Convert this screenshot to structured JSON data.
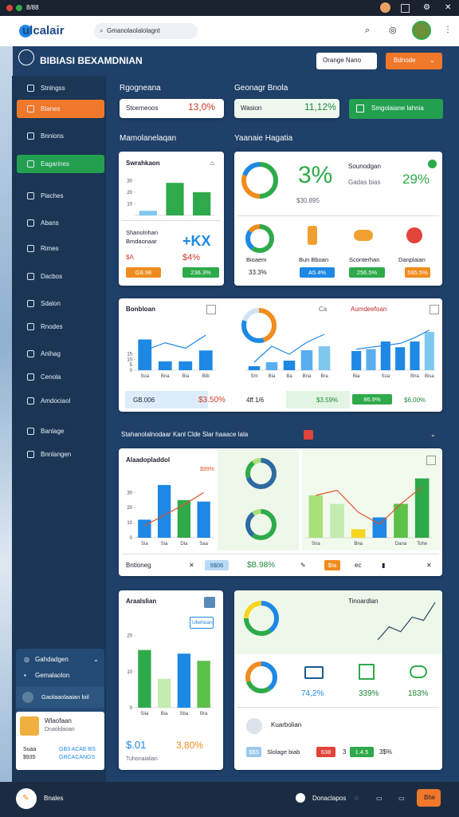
{
  "window": {
    "title": "8/88"
  },
  "header": {
    "logo": "ulcalair",
    "search": "Gmanolaolalolagnt"
  },
  "toolbar": {
    "title": "BIBIASI BEXAMDNIAN",
    "buttons": [
      "Orange Nano",
      "Bdnode"
    ]
  },
  "sidebar": {
    "items": [
      "Stnlngss",
      "Blanes",
      "Bnnions",
      "Eagarines",
      "Piaches",
      "Abans",
      "Rimes",
      "Dacbos",
      "Sdalon",
      "Rnodes",
      "Anihag",
      "Cenola",
      "Amdociaol",
      "Banlage",
      "Bnnlangen"
    ],
    "panel": {
      "title": "Gahdadgen",
      "subtitle": "Gemalaolon",
      "note": "Gaolaaolaaian loil",
      "user": "Wlaofaan",
      "role": "Dnaoldaoan",
      "stats": [
        "Suaa",
        "GB3 ACAE BS",
        "$935",
        "GRCACANGS"
      ]
    }
  },
  "kpis": {
    "labels": [
      "Rgogneana",
      "Geonagr Bnola"
    ],
    "names": [
      "Stcerneoos",
      "Wasion"
    ],
    "values": [
      "13,0%",
      "11,12%"
    ],
    "button": "Smgolaiane lahnia"
  },
  "sections": [
    "Mamolanelaqan",
    "Yaanaie Hagatia",
    "Stahanolalnodaar Kanl Clde Slar haaace lala"
  ],
  "card_a": {
    "title": "Swrahkaon",
    "name": "Shanolnhan",
    "sub": "Bmdaonaar",
    "v1": "$A",
    "v2": "$4%",
    "big": "+KX",
    "tags": [
      "G8.98",
      "236.3%"
    ]
  },
  "card_b": {
    "big": "3%",
    "amount": "$30.895",
    "name": "Sounodgan",
    "sub": "Gadas bias",
    "pct": "29%",
    "labels": [
      "Bioaem",
      "Bun Bboan",
      "Sconterhan",
      "Danplaian"
    ],
    "tags": [
      "33.3%",
      "A5.4%",
      "256.5%",
      "595.5%"
    ]
  },
  "card_c": {
    "title": "Bonbloan",
    "mid": "Ca",
    "right": "Aumdeefoan",
    "strip": [
      "GB.006",
      "$3.50%",
      "4ff.1/6",
      "$3.59%",
      "86.9%",
      "$6.00%"
    ]
  },
  "card_d": {
    "title": "Alaadopladdol",
    "note": "$99%",
    "footer": [
      "Bntioneg",
      "9$06",
      "$B.98%",
      "$Ia",
      "ec"
    ]
  },
  "card_e": {
    "title": "Araalslian",
    "button": "Ullehoan",
    "big": "$.01",
    "pct": "3,80%",
    "foot": "Tuhonaialian"
  },
  "card_f": {
    "title": "Tinoardlan",
    "values": [
      "74,2%",
      "339%",
      "183%"
    ],
    "name": "Kuarbolian",
    "tags": [
      "$$5",
      "Slolage biab",
      "638",
      "3",
      "1.4.5",
      "3$%"
    ]
  },
  "footer": {
    "left": "Bnales",
    "right": "Donaclapos",
    "button": "Bhe"
  },
  "charts": [
    {
      "type": "bar",
      "values": [
        4,
        28,
        20
      ],
      "colors": [
        "#7ec8f0",
        "#2eaa4a",
        "#2eaa4a"
      ],
      "ylim": [
        0,
        35
      ],
      "yticks": [
        10,
        20,
        30
      ]
    },
    {
      "type": "donut",
      "values": [
        50,
        30,
        20
      ],
      "colors": [
        "#2eaa4a",
        "#f08c1e",
        "#1e88e5"
      ]
    },
    {
      "type": "donut",
      "values": [
        60,
        25,
        15
      ],
      "colors": [
        "#2eaa4a",
        "#1e88e5",
        "#f08c1e"
      ]
    },
    {
      "type": "bar",
      "values": [
        28,
        8,
        8,
        18
      ],
      "colors": [
        "#1e88e5",
        "#1e88e5",
        "#1e88e5",
        "#1e88e5"
      ],
      "ylim": [
        0,
        40
      ],
      "yticks": [
        0,
        5,
        10,
        15
      ],
      "categories": [
        "Sua",
        "Bna",
        "Bia",
        "Btb"
      ],
      "line": [
        18,
        25,
        20,
        32
      ],
      "line_color": "#1e88e5"
    },
    {
      "type": "donut",
      "values": [
        45,
        35,
        20
      ],
      "colors": [
        "#f08c1e",
        "#1e88e5",
        "#cfe3f5"
      ]
    },
    {
      "type": "bar",
      "values": [
        5,
        10,
        12,
        25,
        30
      ],
      "colors": [
        "#1e88e5",
        "#5aaef0",
        "#1e88e5",
        "#5aaef0",
        "#7ec8f0"
      ],
      "ylim": [
        0,
        50
      ],
      "categories": [
        "Sm",
        "Bia",
        "Ba",
        "Bna",
        "Bra"
      ],
      "line": [
        10,
        30,
        20,
        35,
        45
      ],
      "line_color": "#1e88e5"
    },
    {
      "type": "bar",
      "values": [
        20,
        22,
        30,
        24,
        30,
        40
      ],
      "colors": [
        "#1e88e5",
        "#5aaef0",
        "#1e88e5",
        "#1e88e5",
        "#1e88e5",
        "#7ec8f0"
      ],
      "ylim": [
        0,
        50
      ],
      "categories": [
        "Bia",
        null,
        "Sua",
        null,
        "Bna",
        "Bisa"
      ],
      "line": [
        22,
        24,
        26,
        28,
        34,
        42
      ],
      "line_color": "#1e88e5"
    },
    {
      "type": "bar",
      "values": [
        12,
        35,
        25,
        24
      ],
      "colors": [
        "#1e88e5",
        "#1e88e5",
        "#2eaa4a",
        "#1e88e5"
      ],
      "ylim": [
        0,
        45
      ],
      "yticks": [
        0,
        10,
        20,
        30
      ],
      "categories": [
        "Sia",
        "Sia",
        "Dia",
        "Saa"
      ],
      "line": [
        8,
        15,
        22,
        30
      ],
      "line_color": "#e0542a"
    },
    {
      "type": "donut",
      "values": [
        70,
        20,
        10
      ],
      "colors": [
        "#2e6aa0",
        "#2eaa4a",
        "#a8e07a"
      ]
    },
    {
      "type": "donut",
      "values": [
        60,
        30,
        10
      ],
      "colors": [
        "#2eaa4a",
        "#2e6aa0",
        "#a8e07a"
      ]
    },
    {
      "type": "bar",
      "values": [
        25,
        20,
        5,
        12,
        20,
        35
      ],
      "colors": [
        "#a8e07a",
        "#c5ecb0",
        "#f5d51e",
        "#1e88e5",
        "#5cc04a",
        "#2eaa4a"
      ],
      "ylim": [
        0,
        40
      ],
      "categories": [
        "Sria",
        null,
        "Bna",
        null,
        "Dana",
        "Tohe"
      ],
      "line": [
        25,
        28,
        15,
        8,
        20,
        30
      ],
      "line_color": "#e0542a"
    },
    {
      "type": "bar",
      "values": [
        16,
        8,
        15,
        13
      ],
      "colors": [
        "#2eaa4a",
        "#c5ecb0",
        "#1e88e5",
        "#5cc04a"
      ],
      "ylim": [
        0,
        25
      ],
      "yticks": [
        0,
        10,
        20
      ],
      "categories": [
        "Siia",
        "Bia",
        "Sba",
        "Bra"
      ]
    },
    {
      "type": "donut",
      "values": [
        40,
        35,
        25
      ],
      "colors": [
        "#1e88e5",
        "#2eaa4a",
        "#f5d51e"
      ]
    },
    {
      "type": "line",
      "values": [
        2,
        10,
        7,
        16,
        14,
        25
      ],
      "ylim": [
        0,
        28
      ],
      "color": "#2e4a66"
    },
    {
      "type": "donut",
      "values": [
        40,
        30,
        30
      ],
      "colors": [
        "#1e88e5",
        "#2eaa4a",
        "#f08c1e"
      ]
    }
  ]
}
